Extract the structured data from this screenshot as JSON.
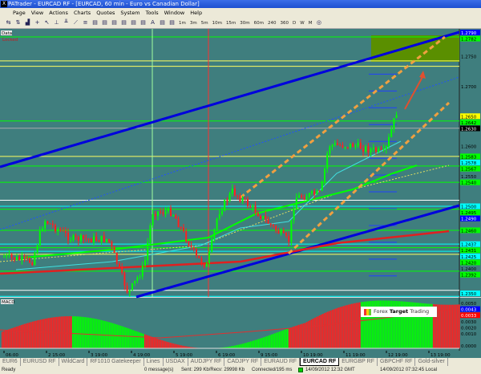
{
  "window": {
    "title": "PATrader - EURCAD RF - [EURCAD, 60 min - Euro vs Canadian Dollar]",
    "icon": "X"
  },
  "menu": [
    "Page",
    "View",
    "Actions",
    "Charts",
    "Quotes",
    "System",
    "Tools",
    "Window",
    "Help"
  ],
  "toolbar": {
    "timeframes": [
      "1m",
      "3m",
      "5m",
      "10m",
      "15m",
      "30m",
      "60m",
      "240",
      "360",
      "D",
      "W",
      "M"
    ]
  },
  "chart": {
    "labels": {
      "data": "Data",
      "locked": "Locked",
      "macd": "MACD"
    },
    "colors": {
      "background": "#3f7e7e",
      "bull": "#00ff00",
      "bear": "#ff2020",
      "trend_main": "#0000dd",
      "channel": "#f0a040"
    },
    "price_axis": [
      {
        "v": "1.2790",
        "bg": "#0000ff",
        "fg": "#fff"
      },
      {
        "v": "1.2782",
        "bg": "#00ff00",
        "fg": "#000"
      },
      {
        "v": "1.2750"
      },
      {
        "v": "1.2700"
      },
      {
        "v": "1.2650",
        "bg": "#ffff00",
        "fg": "#000"
      },
      {
        "v": "1.2642",
        "bg": "#00ff00",
        "fg": "#000"
      },
      {
        "v": "1.2630",
        "bg": "#000",
        "fg": "#fff"
      },
      {
        "v": "1.2600"
      },
      {
        "v": "1.2583",
        "bg": "#00ff00",
        "fg": "#000"
      },
      {
        "v": "1.2578",
        "bg": "#00ffff",
        "fg": "#000"
      },
      {
        "v": "1.2567",
        "bg": "#00ff00",
        "fg": "#000"
      },
      {
        "v": "1.2550"
      },
      {
        "v": "1.2540",
        "bg": "#00ff00",
        "fg": "#000"
      },
      {
        "v": "1.2500",
        "bg": "#00ffff",
        "fg": "#000"
      },
      {
        "v": "1.2495",
        "bg": "#00ff00",
        "fg": "#000"
      },
      {
        "v": "1.2490",
        "bg": "#0000ff",
        "fg": "#fff"
      },
      {
        "v": "1.2460",
        "bg": "#00ff00",
        "fg": "#000"
      },
      {
        "v": "1.2437",
        "bg": "#00ffff",
        "fg": "#000"
      },
      {
        "v": "1.2431",
        "bg": "#00ff00",
        "fg": "#000"
      },
      {
        "v": "1.2425",
        "bg": "#00ffff",
        "fg": "#000"
      },
      {
        "v": "1.2420",
        "bg": "#00ff00",
        "fg": "#000"
      },
      {
        "v": "1.2400"
      },
      {
        "v": "1.2392",
        "bg": "#00ff00",
        "fg": "#000"
      },
      {
        "v": "1.2350",
        "bg": "#00ffff",
        "fg": "#000"
      }
    ],
    "macd_axis": [
      {
        "v": "0.0050"
      },
      {
        "v": "0.0043",
        "bg": "#0000ff",
        "fg": "#fff"
      },
      {
        "v": "0.0033",
        "bg": "#ff0000",
        "fg": "#fff"
      },
      {
        "v": "0.0030"
      },
      {
        "v": "0.0020"
      },
      {
        "v": "0.0010"
      },
      {
        "v": "0.0000"
      }
    ],
    "time_axis": [
      "06:00",
      "2 15:00",
      "3 19:00",
      "4 19:00",
      "5 19:00",
      "6 19:00",
      "9 15:00",
      "10 19:00",
      "11 19:00",
      "12 19:00",
      "13 19:00"
    ],
    "logo": {
      "pre": "Forex ",
      "bold": "Target",
      "post": " Trading"
    }
  },
  "tabs": [
    "EUR6",
    "EURUSD RF",
    "WildCard",
    "RF1010 Gatekeeper",
    "Lines",
    "USDAX",
    "AUDJPY RF",
    "CADJPY RF",
    "EURAUD RF",
    "EURCAD RF",
    "EURGBP RF",
    "GBPCHF RF",
    "Gold-silver"
  ],
  "active_tab": "EURCAD RF",
  "status": {
    "ready": "Ready",
    "messages": "0 message(s)",
    "traffic": "Sent: 299 Kb/Recv: 29998 Kb",
    "connection": "Connected/195 ms",
    "gmt": "14/09/2012 12:32 GMT",
    "local": "14/09/2012 07:32:45 Local"
  }
}
